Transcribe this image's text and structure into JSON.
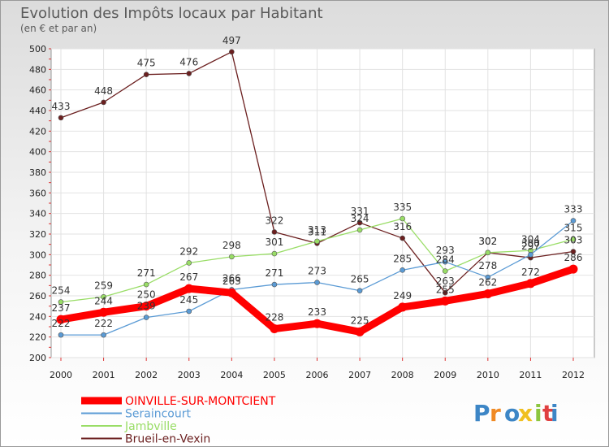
{
  "chart_data": {
    "type": "line",
    "title": "Evolution des Impôts locaux par Habitant",
    "subtitle": "(en € et par an)",
    "xlabel": "",
    "ylabel": "",
    "categories": [
      "2000",
      "2001",
      "2002",
      "2003",
      "2004",
      "2005",
      "2006",
      "2007",
      "2008",
      "2009",
      "2010",
      "2011",
      "2012"
    ],
    "ylim": [
      200,
      500
    ],
    "yticks": [
      200,
      220,
      240,
      260,
      280,
      300,
      320,
      340,
      360,
      380,
      400,
      420,
      440,
      460,
      480,
      500
    ],
    "grid": true,
    "legend_position": "bottom-left",
    "series": [
      {
        "name": "OINVILLE-SUR-MONTCIENT",
        "color": "#ff0000",
        "values": [
          237,
          244,
          250,
          267,
          263,
          228,
          233,
          225,
          249,
          255,
          262,
          272,
          286
        ],
        "labels": [
          "237",
          "244",
          "250",
          "267",
          "263",
          "228",
          "233",
          "225",
          "249",
          "255",
          "262",
          "272",
          "286"
        ]
      },
      {
        "name": "Seraincourt",
        "color": "#5b9bd5",
        "values": [
          222,
          222,
          239,
          245,
          266,
          271,
          273,
          265,
          285,
          293,
          278,
          300,
          333
        ],
        "labels": [
          "222",
          "222",
          "239",
          "245",
          "266",
          "271",
          "273",
          "265",
          "285",
          "293",
          "278",
          "300",
          "333"
        ]
      },
      {
        "name": "Jambville",
        "color": "#99dd66",
        "values": [
          254,
          259,
          271,
          292,
          298,
          301,
          313,
          324,
          335,
          284,
          302,
          304,
          315
        ],
        "labels": [
          "254",
          "259",
          "271",
          "292",
          "298",
          "301",
          "313",
          "324",
          "335",
          "284",
          "302",
          "304",
          "315"
        ]
      },
      {
        "name": "Brueil-en-Vexin",
        "color": "#6b1f1f",
        "values": [
          433,
          448,
          475,
          476,
          497,
          322,
          311,
          331,
          316,
          263,
          302,
          297,
          303
        ],
        "labels": [
          "433",
          "448",
          "475",
          "476",
          "497",
          "322",
          "311",
          "331",
          "316",
          "263",
          "302",
          "297",
          "303"
        ]
      }
    ]
  },
  "logo": {
    "letters": [
      "P",
      "r",
      "o",
      "x",
      "i",
      "t",
      "i"
    ],
    "colors": [
      "#3d86c6",
      "#f08a24",
      "#3d86c6",
      "#f0c020",
      "#8cc63f",
      "#e04040",
      "#3d86c6"
    ]
  }
}
